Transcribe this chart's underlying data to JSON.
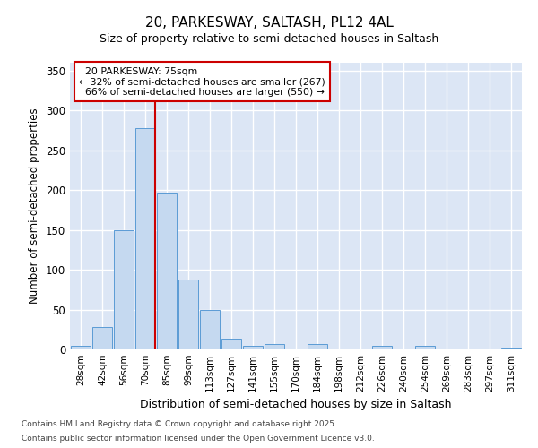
{
  "title1": "20, PARKESWAY, SALTASH, PL12 4AL",
  "title2": "Size of property relative to semi-detached houses in Saltash",
  "xlabel": "Distribution of semi-detached houses by size in Saltash",
  "ylabel": "Number of semi-detached properties",
  "categories": [
    "28sqm",
    "42sqm",
    "56sqm",
    "70sqm",
    "85sqm",
    "99sqm",
    "113sqm",
    "127sqm",
    "141sqm",
    "155sqm",
    "170sqm",
    "184sqm",
    "198sqm",
    "212sqm",
    "226sqm",
    "240sqm",
    "254sqm",
    "269sqm",
    "283sqm",
    "297sqm",
    "311sqm"
  ],
  "values": [
    5,
    28,
    150,
    278,
    197,
    88,
    49,
    13,
    4,
    7,
    0,
    7,
    0,
    0,
    5,
    0,
    5,
    0,
    0,
    0,
    2
  ],
  "bar_color": "#c5d9f0",
  "bar_edge_color": "#5b9bd5",
  "marker_bin_index": 3,
  "marker_label": "20 PARKESWAY: 75sqm",
  "smaller_pct": "32%",
  "smaller_count": 267,
  "larger_pct": "66%",
  "larger_count": 550,
  "vline_color": "#cc0000",
  "ylim": [
    0,
    360
  ],
  "yticks": [
    0,
    50,
    100,
    150,
    200,
    250,
    300,
    350
  ],
  "annotation_box_color": "#cc0000",
  "footer1": "Contains HM Land Registry data © Crown copyright and database right 2025.",
  "footer2": "Contains public sector information licensed under the Open Government Licence v3.0.",
  "plot_bg_color": "#dce6f5"
}
